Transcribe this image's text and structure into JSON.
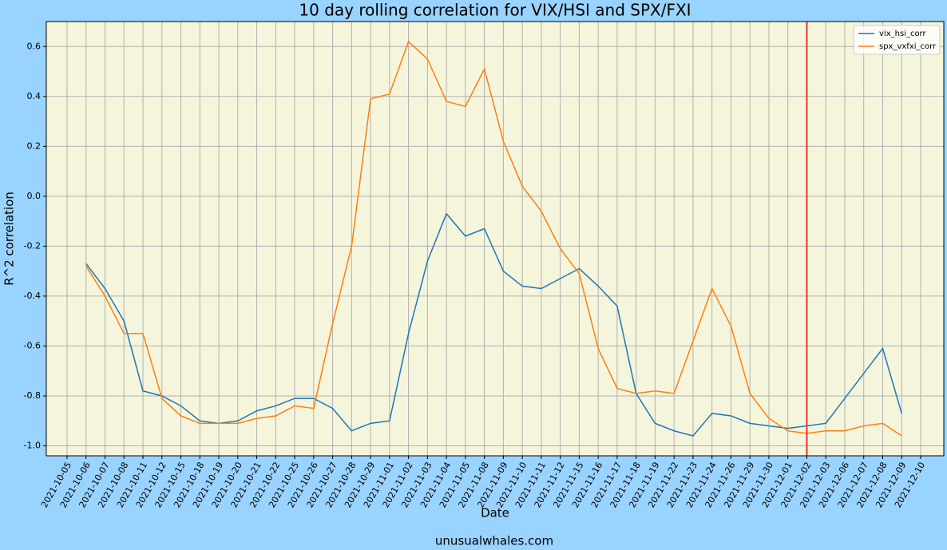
{
  "chart_data": {
    "type": "line",
    "title": "10 day rolling correlation for VIX/HSI and SPX/FXI",
    "xlabel": "Date",
    "ylabel": "R^2 correlation",
    "footer": "unusualwhales.com",
    "categories": [
      "2021-10-05",
      "2021-10-06",
      "2021-10-07",
      "2021-10-08",
      "2021-10-11",
      "2021-10-12",
      "2021-10-15",
      "2021-10-18",
      "2021-10-19",
      "2021-10-20",
      "2021-10-21",
      "2021-10-22",
      "2021-10-25",
      "2021-10-26",
      "2021-10-27",
      "2021-10-28",
      "2021-10-29",
      "2021-11-01",
      "2021-11-02",
      "2021-11-03",
      "2021-11-04",
      "2021-11-05",
      "2021-11-08",
      "2021-11-09",
      "2021-11-10",
      "2021-11-11",
      "2021-11-12",
      "2021-11-15",
      "2021-11-16",
      "2021-11-17",
      "2021-11-18",
      "2021-11-19",
      "2021-11-22",
      "2021-11-23",
      "2021-11-24",
      "2021-11-26",
      "2021-11-29",
      "2021-11-30",
      "2021-12-01",
      "2021-12-02",
      "2021-12-03",
      "2021-12-06",
      "2021-12-07",
      "2021-12-08",
      "2021-12-09",
      "2021-12-10"
    ],
    "series": [
      {
        "name": "vix_hsi_corr",
        "color": "#1f77b4",
        "values": [
          null,
          -0.27,
          -0.37,
          -0.5,
          -0.78,
          -0.8,
          -0.84,
          -0.9,
          -0.91,
          -0.9,
          -0.86,
          -0.84,
          -0.81,
          -0.81,
          -0.85,
          -0.94,
          -0.91,
          -0.9,
          -0.55,
          -0.26,
          -0.07,
          -0.16,
          -0.13,
          -0.3,
          -0.36,
          -0.37,
          -0.33,
          -0.29,
          -0.36,
          -0.44,
          -0.79,
          -0.91,
          -0.94,
          -0.96,
          -0.87,
          -0.88,
          -0.91,
          -0.92,
          -0.93,
          -0.92,
          -0.91,
          -0.81,
          -0.71,
          -0.61,
          -0.87,
          null
        ]
      },
      {
        "name": "spx_vxfxi_corr",
        "color": "#ff7f0e",
        "values": [
          null,
          -0.28,
          -0.4,
          -0.55,
          -0.55,
          -0.81,
          -0.88,
          -0.91,
          -0.91,
          -0.91,
          -0.89,
          -0.88,
          -0.84,
          -0.85,
          -0.51,
          -0.2,
          0.39,
          0.41,
          0.62,
          0.55,
          0.38,
          0.36,
          0.51,
          0.22,
          0.04,
          -0.06,
          -0.21,
          -0.31,
          -0.61,
          -0.77,
          -0.79,
          -0.78,
          -0.79,
          -0.58,
          -0.37,
          -0.52,
          -0.79,
          -0.89,
          -0.94,
          -0.95,
          -0.94,
          -0.94,
          -0.92,
          -0.91,
          -0.96,
          null
        ]
      }
    ],
    "ylim": [
      -1.04,
      0.7
    ],
    "yticks": [
      {
        "value": -1.0,
        "label": "-1.0"
      },
      {
        "value": -0.8,
        "label": "-0.8"
      },
      {
        "value": -0.6,
        "label": "-0.6"
      },
      {
        "value": -0.4,
        "label": "-0.4"
      },
      {
        "value": -0.2,
        "label": "-0.2"
      },
      {
        "value": 0.0,
        "label": "0.0"
      },
      {
        "value": 0.2,
        "label": "0.2"
      },
      {
        "value": 0.4,
        "label": "0.4"
      },
      {
        "value": 0.6,
        "label": "0.6"
      }
    ],
    "grid": true,
    "legend": "upper right",
    "vline": {
      "category": "2021-12-02",
      "color": "#e8312a"
    }
  }
}
